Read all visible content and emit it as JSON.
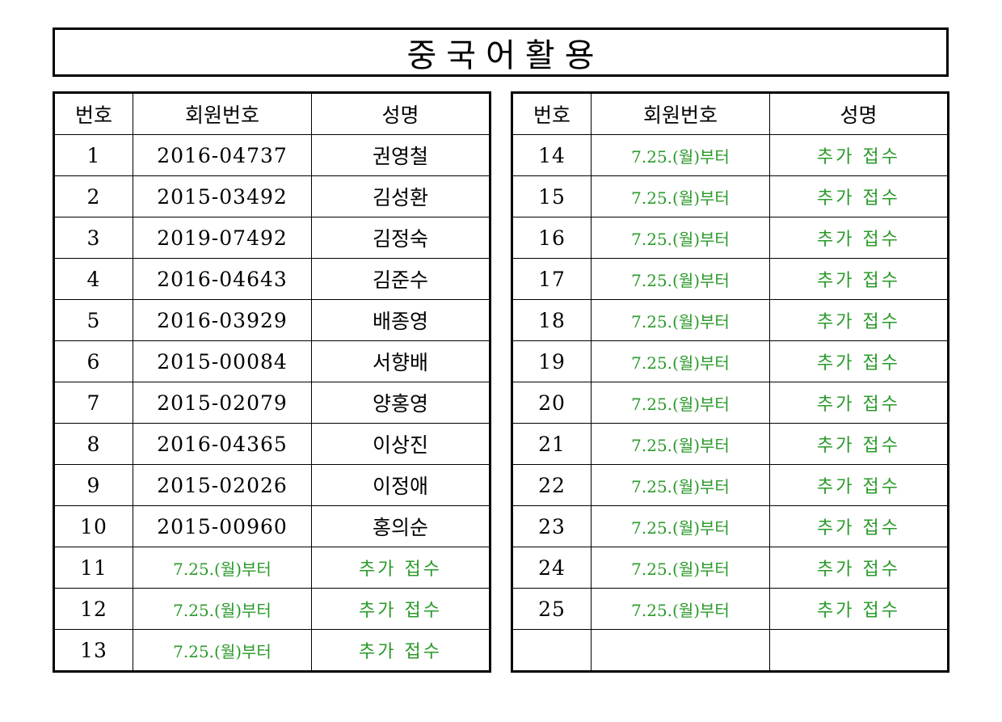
{
  "title": "중국어활용",
  "headers": {
    "number": "번호",
    "member_id": "회원번호",
    "name": "성명"
  },
  "left_rows": [
    {
      "no": "1",
      "member_id": "2016-04737",
      "name": "권영철",
      "pending": false
    },
    {
      "no": "2",
      "member_id": "2015-03492",
      "name": "김성환",
      "pending": false
    },
    {
      "no": "3",
      "member_id": "2019-07492",
      "name": "김정숙",
      "pending": false
    },
    {
      "no": "4",
      "member_id": "2016-04643",
      "name": "김준수",
      "pending": false
    },
    {
      "no": "5",
      "member_id": "2016-03929",
      "name": "배종영",
      "pending": false
    },
    {
      "no": "6",
      "member_id": "2015-00084",
      "name": "서향배",
      "pending": false
    },
    {
      "no": "7",
      "member_id": "2015-02079",
      "name": "양홍영",
      "pending": false
    },
    {
      "no": "8",
      "member_id": "2016-04365",
      "name": "이상진",
      "pending": false
    },
    {
      "no": "9",
      "member_id": "2015-02026",
      "name": "이정애",
      "pending": false
    },
    {
      "no": "10",
      "member_id": "2015-00960",
      "name": "홍의순",
      "pending": false
    },
    {
      "no": "11",
      "member_id": "7.25.(월)부터",
      "name": "추가 접수",
      "pending": true
    },
    {
      "no": "12",
      "member_id": "7.25.(월)부터",
      "name": "추가 접수",
      "pending": true
    },
    {
      "no": "13",
      "member_id": "7.25.(월)부터",
      "name": "추가 접수",
      "pending": true
    }
  ],
  "right_rows": [
    {
      "no": "14",
      "member_id": "7.25.(월)부터",
      "name": "추가 접수",
      "pending": true
    },
    {
      "no": "15",
      "member_id": "7.25.(월)부터",
      "name": "추가 접수",
      "pending": true
    },
    {
      "no": "16",
      "member_id": "7.25.(월)부터",
      "name": "추가 접수",
      "pending": true
    },
    {
      "no": "17",
      "member_id": "7.25.(월)부터",
      "name": "추가 접수",
      "pending": true
    },
    {
      "no": "18",
      "member_id": "7.25.(월)부터",
      "name": "추가 접수",
      "pending": true
    },
    {
      "no": "19",
      "member_id": "7.25.(월)부터",
      "name": "추가 접수",
      "pending": true
    },
    {
      "no": "20",
      "member_id": "7.25.(월)부터",
      "name": "추가 접수",
      "pending": true
    },
    {
      "no": "21",
      "member_id": "7.25.(월)부터",
      "name": "추가 접수",
      "pending": true
    },
    {
      "no": "22",
      "member_id": "7.25.(월)부터",
      "name": "추가 접수",
      "pending": true
    },
    {
      "no": "23",
      "member_id": "7.25.(월)부터",
      "name": "추가 접수",
      "pending": true
    },
    {
      "no": "24",
      "member_id": "7.25.(월)부터",
      "name": "추가 접수",
      "pending": true
    },
    {
      "no": "25",
      "member_id": "7.25.(월)부터",
      "name": "추가 접수",
      "pending": true
    },
    {
      "no": "",
      "member_id": "",
      "name": "",
      "pending": false
    }
  ],
  "colors": {
    "pending_text": "#2a9a2a",
    "border": "#000000"
  }
}
